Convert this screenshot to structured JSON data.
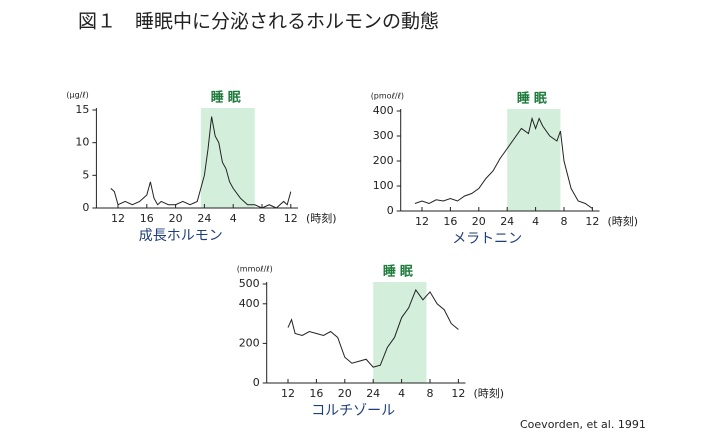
{
  "title": "図１　睡眠中に分泌されるホルモンの動態",
  "source": "Coevorden, et al. 1991",
  "chart_data": [
    {
      "type": "line",
      "title": "成長ホルモン",
      "y_label": "(μg/ℓ)",
      "x_label": "(時刻)",
      "annotation": "睡眠",
      "sleep_band": [
        23.5,
        31
      ],
      "band_color": "#d3efdc",
      "xlim": [
        9,
        37
      ],
      "ylim": [
        0,
        15
      ],
      "yticks": [
        0,
        5,
        10,
        15
      ],
      "xticks": [
        12,
        16,
        20,
        24,
        {
          "value": 28,
          "label": "4"
        },
        {
          "value": 32,
          "label": "8"
        },
        {
          "value": 36,
          "label": "12"
        }
      ],
      "x": [
        11,
        11.5,
        12,
        13,
        14,
        15,
        15.5,
        16,
        16.5,
        17,
        17.5,
        18,
        19,
        20,
        21,
        22,
        23,
        23.5,
        24,
        24.5,
        25,
        25.5,
        26,
        26.5,
        27,
        27.5,
        28,
        29,
        30,
        31,
        32,
        33,
        34,
        35,
        35.5,
        36
      ],
      "series": [
        {
          "name": "成長ホルモン",
          "color": "#222222",
          "values": [
            3,
            2.5,
            0.5,
            1,
            0.5,
            1,
            1.5,
            2,
            4,
            1.5,
            0.5,
            1,
            0.5,
            0.5,
            1,
            0.5,
            1,
            3,
            5,
            9,
            14,
            11,
            10,
            7,
            6,
            4,
            3,
            1.5,
            0.5,
            0.5,
            0,
            0.5,
            0,
            1,
            0.5,
            2.5
          ]
        }
      ]
    },
    {
      "type": "line",
      "title": "メラトニン",
      "y_label": "(pmoℓ/ℓ)",
      "x_label": "(時刻)",
      "annotation": "睡眠",
      "sleep_band": [
        24,
        31.5
      ],
      "band_color": "#d3efdc",
      "xlim": [
        9,
        37
      ],
      "ylim": [
        0,
        400
      ],
      "yticks": [
        0,
        100,
        200,
        300,
        400
      ],
      "xticks": [
        12,
        16,
        20,
        24,
        {
          "value": 28,
          "label": "4"
        },
        {
          "value": 32,
          "label": "8"
        },
        {
          "value": 36,
          "label": "12"
        }
      ],
      "x": [
        11,
        12,
        13,
        14,
        15,
        16,
        17,
        18,
        19,
        20,
        21,
        22,
        23,
        24,
        25,
        26,
        27,
        27.5,
        28,
        28.5,
        29,
        30,
        31,
        31.5,
        32,
        33,
        34,
        35,
        36
      ],
      "series": [
        {
          "name": "メラトニン",
          "color": "#222222",
          "values": [
            30,
            40,
            30,
            45,
            40,
            50,
            40,
            60,
            70,
            90,
            130,
            160,
            210,
            250,
            290,
            330,
            310,
            370,
            330,
            370,
            340,
            300,
            280,
            320,
            200,
            90,
            40,
            30,
            10
          ]
        }
      ]
    },
    {
      "type": "line",
      "title": "コルチゾール",
      "y_label": "(mmoℓ/ℓ)",
      "x_label": "(時刻)",
      "annotation": "睡眠",
      "sleep_band": [
        24,
        31.5
      ],
      "band_color": "#d3efdc",
      "xlim": [
        9,
        37
      ],
      "ylim": [
        0,
        500
      ],
      "yticks": [
        0,
        200,
        400,
        500
      ],
      "xticks": [
        12,
        16,
        20,
        24,
        {
          "value": 28,
          "label": "4"
        },
        {
          "value": 32,
          "label": "8"
        },
        {
          "value": 36,
          "label": "12"
        }
      ],
      "x": [
        12,
        12.5,
        13,
        14,
        15,
        16,
        17,
        18,
        19,
        20,
        21,
        22,
        23,
        24,
        25,
        26,
        27,
        28,
        29,
        30,
        31,
        32,
        33,
        34,
        35,
        36
      ],
      "series": [
        {
          "name": "コルチゾール",
          "color": "#222222",
          "values": [
            280,
            320,
            250,
            240,
            260,
            250,
            240,
            260,
            230,
            130,
            100,
            110,
            120,
            80,
            90,
            180,
            230,
            330,
            380,
            470,
            420,
            460,
            400,
            370,
            300,
            270
          ]
        }
      ]
    }
  ]
}
